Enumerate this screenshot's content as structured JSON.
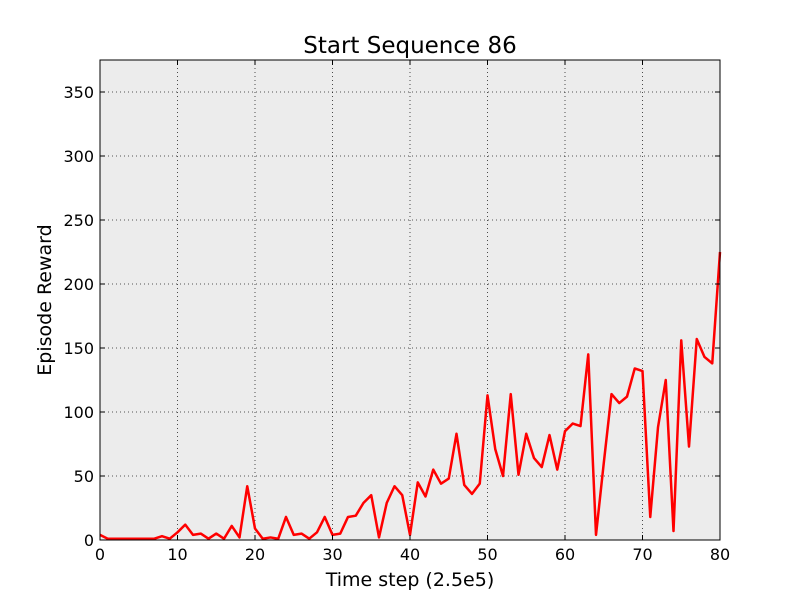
{
  "chart_data": {
    "type": "line",
    "title": "Start Sequence 86",
    "xlabel": "Time step (2.5e5)",
    "ylabel": "Episode Reward",
    "xlim": [
      0,
      80
    ],
    "ylim": [
      0,
      375
    ],
    "xticks": [
      0,
      10,
      20,
      30,
      40,
      50,
      60,
      70,
      80
    ],
    "yticks": [
      0,
      50,
      100,
      150,
      200,
      250,
      300,
      350
    ],
    "grid": true,
    "background_color": "#ececec",
    "series": [
      {
        "color": "#ff0000",
        "x": [
          0,
          1,
          2,
          3,
          4,
          5,
          6,
          7,
          8,
          9,
          10,
          11,
          12,
          13,
          14,
          15,
          16,
          17,
          18,
          19,
          20,
          21,
          22,
          23,
          24,
          25,
          26,
          27,
          28,
          29,
          30,
          31,
          32,
          33,
          34,
          35,
          36,
          37,
          38,
          39,
          40,
          41,
          42,
          43,
          44,
          45,
          46,
          47,
          48,
          49,
          50,
          51,
          52,
          53,
          54,
          55,
          56,
          57,
          58,
          59,
          60,
          61,
          62,
          63,
          64,
          65,
          66,
          67,
          68,
          69,
          70,
          71,
          72,
          73,
          74,
          75,
          76,
          77,
          78,
          79,
          80
        ],
        "y": [
          4,
          1,
          1,
          1,
          1,
          1,
          1,
          1,
          3,
          1,
          6,
          12,
          4,
          5,
          1,
          5,
          1,
          11,
          2,
          42,
          9,
          1,
          2,
          1,
          18,
          4,
          5,
          1,
          6,
          18,
          4,
          5,
          18,
          19,
          29,
          35,
          2,
          29,
          42,
          35,
          4,
          45,
          34,
          55,
          44,
          48,
          83,
          43,
          36,
          44,
          113,
          71,
          50,
          114,
          51,
          83,
          64,
          57,
          82,
          55,
          85,
          91,
          89,
          145,
          4,
          60,
          114,
          107,
          112,
          134,
          132,
          18,
          88,
          125,
          7,
          156,
          73,
          157,
          143,
          138,
          225
        ]
      }
    ]
  }
}
